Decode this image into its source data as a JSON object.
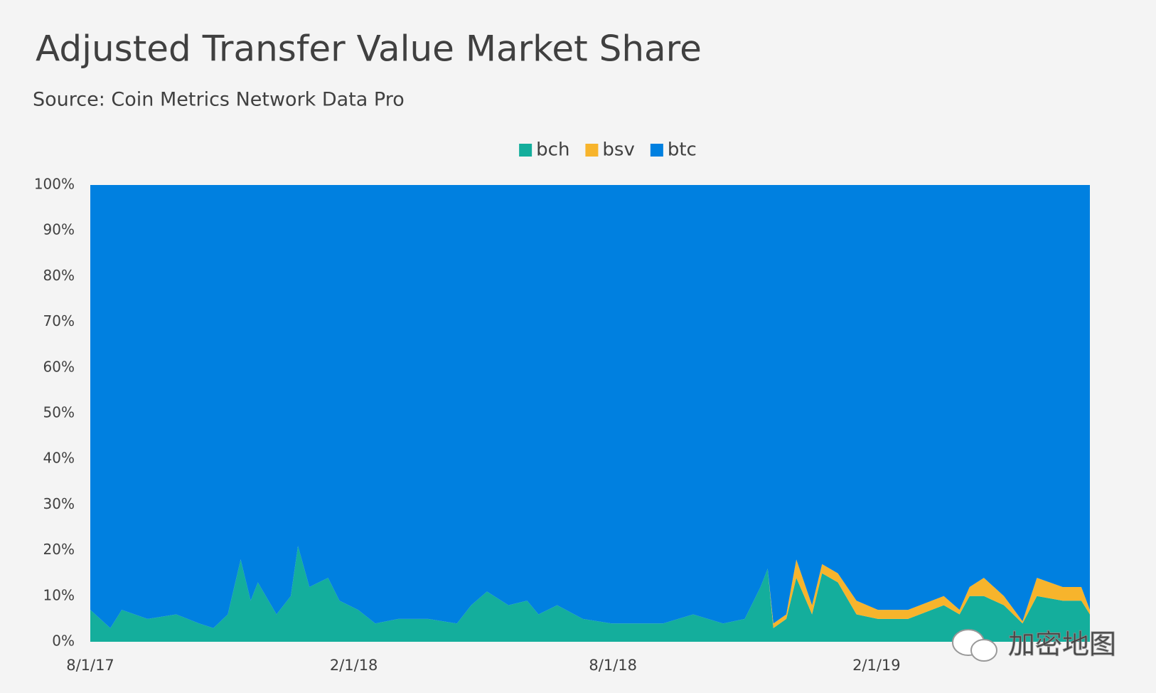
{
  "chart_data": {
    "type": "stacked_area",
    "title": "Adjusted Transfer Value Market Share",
    "subtitle": "Source: Coin Metrics Network Data Pro",
    "watermark": "加密地图",
    "x": [
      "2017-08-01",
      "2017-08-15",
      "2017-08-23",
      "2017-09-10",
      "2017-09-30",
      "2017-10-16",
      "2017-10-26",
      "2017-11-05",
      "2017-11-14",
      "2017-11-21",
      "2017-11-26",
      "2017-12-09",
      "2017-12-19",
      "2017-12-24",
      "2018-01-01",
      "2018-01-14",
      "2018-01-22",
      "2018-02-04",
      "2018-02-16",
      "2018-03-04",
      "2018-03-25",
      "2018-04-14",
      "2018-04-24",
      "2018-05-05",
      "2018-05-20",
      "2018-06-02",
      "2018-06-10",
      "2018-06-23",
      "2018-07-11",
      "2018-07-31",
      "2018-08-16",
      "2018-09-05",
      "2018-09-26",
      "2018-10-17",
      "2018-11-01",
      "2018-11-12",
      "2018-11-17",
      "2018-11-21",
      "2018-11-30",
      "2018-12-07",
      "2018-12-18",
      "2018-12-25",
      "2019-01-05",
      "2019-01-18",
      "2019-02-02",
      "2019-02-23",
      "2019-03-20",
      "2019-03-31",
      "2019-04-07",
      "2019-04-17",
      "2019-05-01",
      "2019-05-14",
      "2019-05-24",
      "2019-06-11",
      "2019-06-24",
      "2019-06-30"
    ],
    "series": [
      {
        "name": "bch",
        "color": "#14ae9c",
        "values": [
          7,
          3,
          7,
          5,
          6,
          4,
          3,
          6,
          18,
          9,
          13,
          6,
          10,
          21,
          12,
          14,
          9,
          7,
          4,
          5,
          5,
          4,
          8,
          11,
          8,
          9,
          6,
          8,
          5,
          4,
          4,
          4,
          6,
          4,
          5,
          12,
          16,
          3,
          5,
          14,
          6,
          15,
          13,
          6,
          5,
          5,
          8,
          6,
          10,
          10,
          8,
          4,
          10,
          9,
          9,
          6
        ]
      },
      {
        "name": "bsv",
        "color": "#f7b42c",
        "values": [
          0,
          0,
          0,
          0,
          0,
          0,
          0,
          0,
          0,
          0,
          0,
          0,
          0,
          0,
          0,
          0,
          0,
          0,
          0,
          0,
          0,
          0,
          0,
          0,
          0,
          0,
          0,
          0,
          0,
          0,
          0,
          0,
          0,
          0,
          0,
          0,
          0,
          1,
          1,
          4,
          2,
          2,
          2,
          3,
          2,
          2,
          2,
          1,
          2,
          4,
          2,
          0.5,
          4,
          3,
          3,
          1
        ]
      },
      {
        "name": "btc",
        "color": "#0080e0",
        "values": [
          93,
          97,
          93,
          95,
          94,
          96,
          97,
          94,
          82,
          91,
          87,
          94,
          90,
          79,
          88,
          86,
          91,
          93,
          96,
          95,
          95,
          96,
          92,
          89,
          92,
          91,
          94,
          92,
          95,
          96,
          96,
          96,
          94,
          96,
          95,
          88,
          84,
          96,
          94,
          82,
          92,
          83,
          85,
          91,
          93,
          93,
          90,
          93,
          88,
          86,
          90,
          95.5,
          86,
          88,
          88,
          93
        ]
      }
    ],
    "xlim": [
      "2017-08-01",
      "2019-06-30"
    ],
    "xticks": [
      {
        "value": "2017-08-01",
        "label": "8/1/17"
      },
      {
        "value": "2018-02-01",
        "label": "2/1/18"
      },
      {
        "value": "2018-08-01",
        "label": "8/1/18"
      },
      {
        "value": "2019-02-01",
        "label": "2/1/19"
      }
    ],
    "ylim": [
      0,
      100
    ],
    "yticks": [
      {
        "value": 0,
        "label": "0%"
      },
      {
        "value": 10,
        "label": "10%"
      },
      {
        "value": 20,
        "label": "20%"
      },
      {
        "value": 30,
        "label": "30%"
      },
      {
        "value": 40,
        "label": "40%"
      },
      {
        "value": 50,
        "label": "50%"
      },
      {
        "value": 60,
        "label": "60%"
      },
      {
        "value": 70,
        "label": "70%"
      },
      {
        "value": 80,
        "label": "80%"
      },
      {
        "value": 90,
        "label": "90%"
      },
      {
        "value": 100,
        "label": "100%"
      }
    ],
    "legend": "top"
  }
}
